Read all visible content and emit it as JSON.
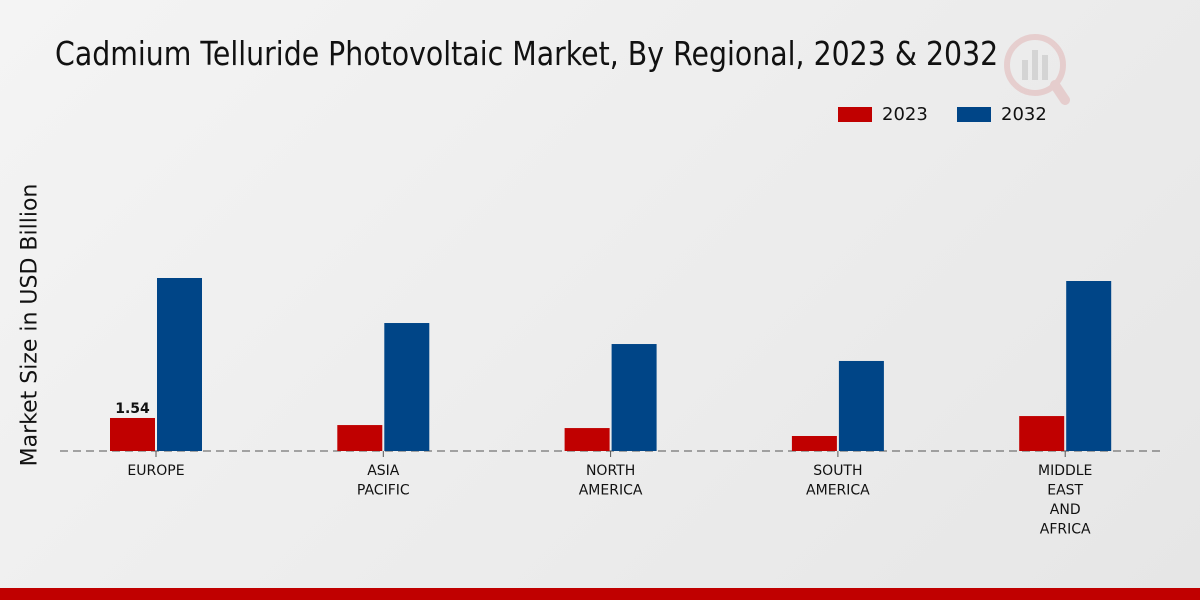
{
  "chart_data": {
    "type": "bar",
    "title": "Cadmium Telluride Photovoltaic Market, By Regional, 2023 & 2032",
    "ylabel": "Market Size in USD Billion",
    "xlabel": "",
    "categories": [
      [
        "EUROPE"
      ],
      [
        "ASIA",
        "PACIFIC"
      ],
      [
        "NORTH",
        "AMERICA"
      ],
      [
        "SOUTH",
        "AMERICA"
      ],
      [
        "MIDDLE",
        "EAST",
        "AND",
        "AFRICA"
      ]
    ],
    "series": [
      {
        "name": "2023",
        "color": "#c00000",
        "values": [
          1.54,
          1.21,
          1.07,
          0.7,
          1.63
        ]
      },
      {
        "name": "2032",
        "color": "#004587",
        "values": [
          8.07,
          5.97,
          4.99,
          4.2,
          7.93
        ]
      }
    ],
    "data_labels": [
      {
        "series": 0,
        "index": 0,
        "text": "1.54"
      }
    ],
    "ylim": [
      0,
      10
    ],
    "grid": false,
    "legend": "top-right"
  }
}
